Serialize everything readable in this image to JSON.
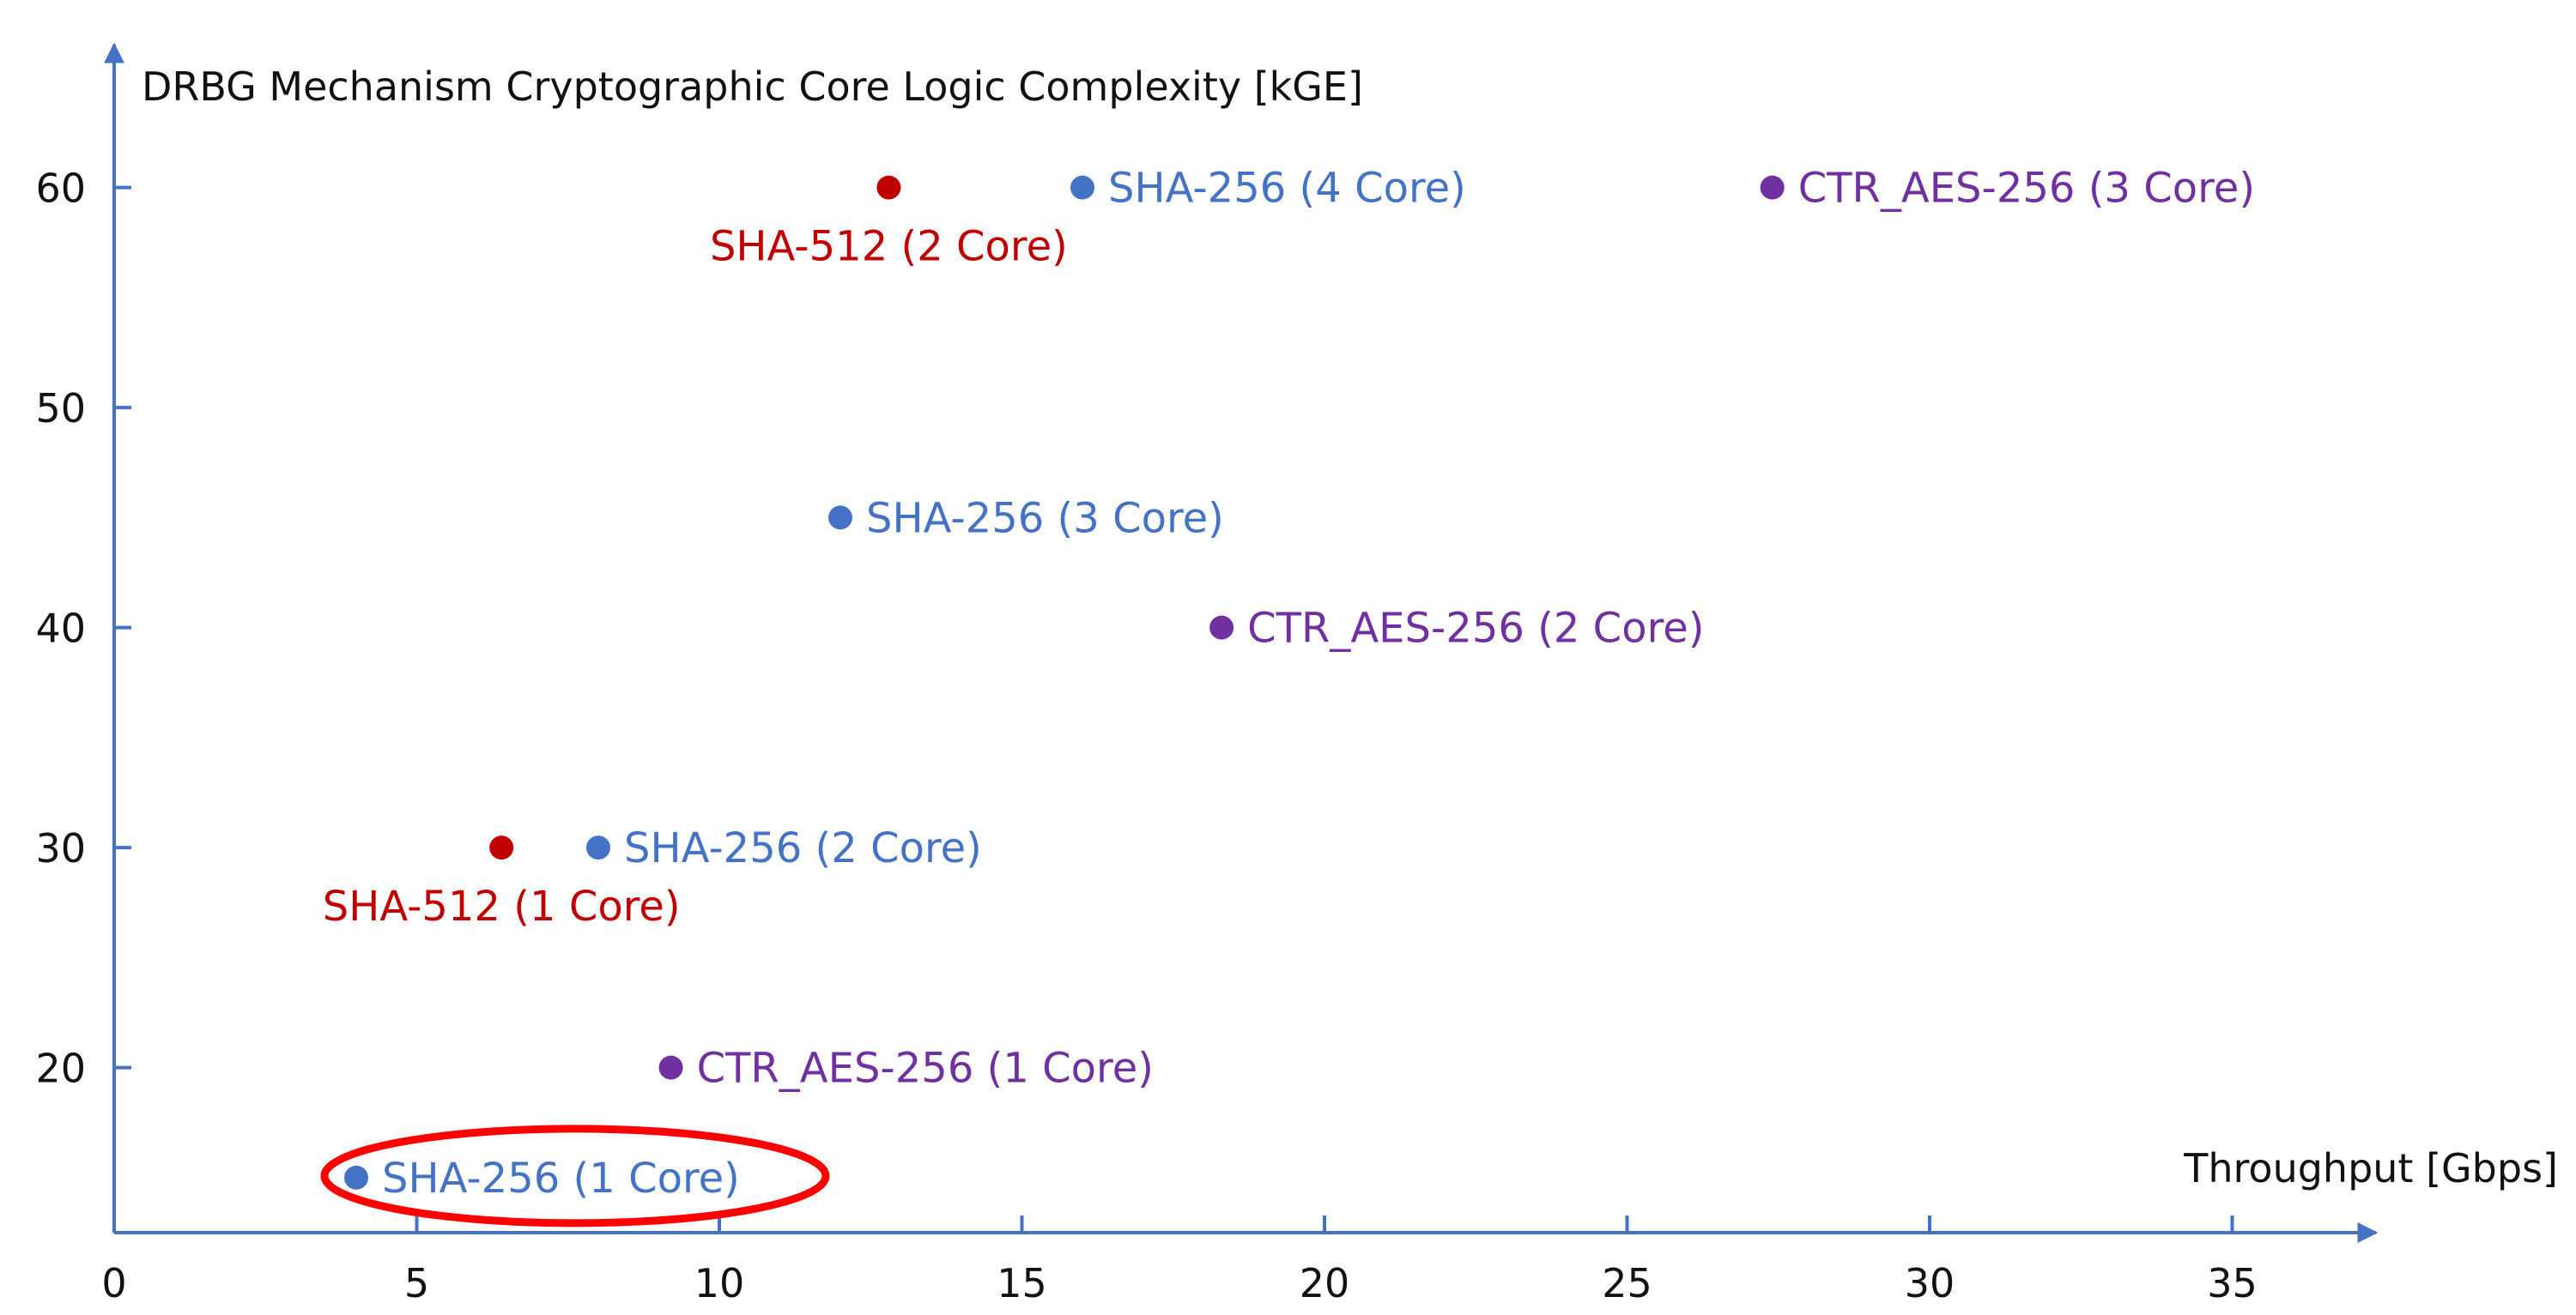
{
  "chart_data": {
    "type": "scatter",
    "ylabel": "DRBG Mechanism Cryptographic Core Logic Complexity [kGE]",
    "xlabel": "Throughput [Gbps]",
    "xlim": [
      0,
      37.5
    ],
    "ylim": [
      12.5,
      66.5
    ],
    "x_ticks": [
      0,
      5,
      10,
      15,
      20,
      25,
      30,
      35
    ],
    "y_ticks": [
      20,
      30,
      40,
      50,
      60
    ],
    "grid": false,
    "colors": {
      "SHA-256": "#4472c4",
      "SHA-512": "#c00000",
      "CTR_AES-256": "#7030a0",
      "highlight": "#ff0000",
      "axis": "#4472c4"
    },
    "series": [
      {
        "name": "SHA-256",
        "points": [
          {
            "x": 4.0,
            "y": 15,
            "label": "SHA-256 (1 Core)",
            "label_pos": "right"
          },
          {
            "x": 8.0,
            "y": 30,
            "label": "SHA-256 (2 Core)",
            "label_pos": "right"
          },
          {
            "x": 12.0,
            "y": 45,
            "label": "SHA-256 (3 Core)",
            "label_pos": "right"
          },
          {
            "x": 16.0,
            "y": 60,
            "label": "SHA-256 (4 Core)",
            "label_pos": "right"
          }
        ]
      },
      {
        "name": "SHA-512",
        "points": [
          {
            "x": 6.4,
            "y": 30,
            "label": "SHA-512 (1 Core)",
            "label_pos": "below"
          },
          {
            "x": 12.8,
            "y": 60,
            "label": "SHA-512 (2 Core)",
            "label_pos": "below"
          }
        ]
      },
      {
        "name": "CTR_AES-256",
        "points": [
          {
            "x": 9.2,
            "y": 20,
            "label": "CTR_AES-256 (1 Core)",
            "label_pos": "right"
          },
          {
            "x": 18.3,
            "y": 40,
            "label": "CTR_AES-256 (2 Core)",
            "label_pos": "right"
          },
          {
            "x": 27.4,
            "y": 60,
            "label": "CTR_AES-256 (3 Core)",
            "label_pos": "right"
          }
        ]
      }
    ],
    "annotations": [
      {
        "type": "ellipse",
        "target": "SHA-256 (1 Core)",
        "color": "#ff0000"
      }
    ]
  }
}
